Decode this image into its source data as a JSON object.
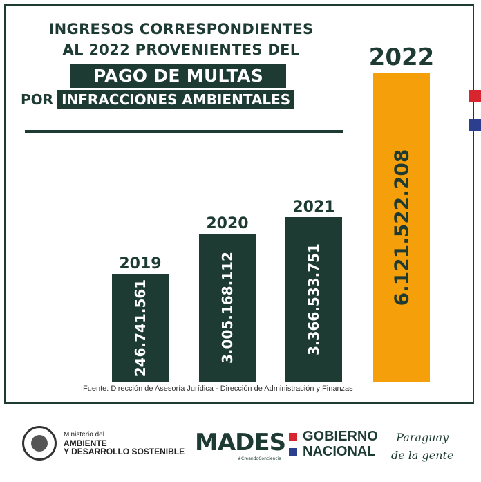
{
  "title": {
    "line1": "INGRESOS CORRESPONDIENTES",
    "line2": "AL 2022 PROVENIENTES DEL",
    "line3": "PAGO DE MULTAS",
    "line4a": "POR",
    "line4b": "INFRACCIONES AMBIENTALES"
  },
  "colors": {
    "dark": "#1d3b33",
    "highlight": "#f59f0b",
    "bar_text": "#ffffff"
  },
  "chart_data": {
    "type": "bar",
    "categories": [
      "2019",
      "2020",
      "2021",
      "2022"
    ],
    "values": [
      246741561,
      3005168112,
      3366533751,
      6121522208
    ],
    "value_labels": [
      "246.741.561",
      "3.005.168.112",
      "3.366.533.751",
      "6.121.522.208"
    ],
    "highlight_index": 3,
    "grid": false,
    "legend": "none"
  },
  "source": "Fuente: Dirección de Asesoría Jurídica - Dirección de Administración y Finanzas",
  "footer": {
    "ministry_small": "Ministerio del",
    "ministry_line1": "AMBIENTE",
    "ministry_line2": "Y DESARROLLO SOSTENIBLE",
    "mades": "MADES",
    "mades_sub": "#CreandoConciencia",
    "gobierno_line1": "GOBIERNO",
    "gobierno_line2": "NACIONAL",
    "slogan_line1": "Paraguay",
    "slogan_line2": "de la gente"
  }
}
